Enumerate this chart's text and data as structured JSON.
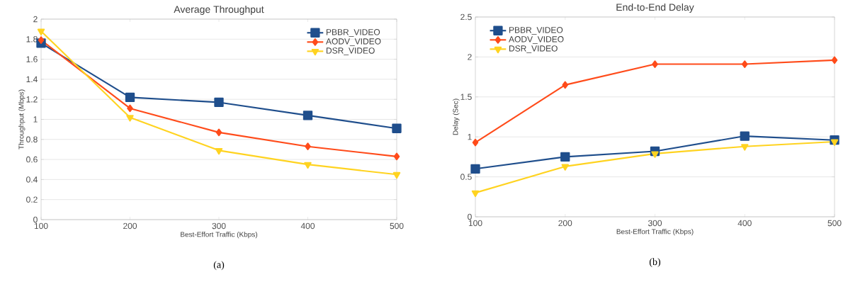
{
  "chart_data": [
    {
      "type": "line",
      "title": "Average Throughput",
      "xlabel": "Best-Effort Traffic (Kbps)",
      "ylabel": "Throughput (Mbps)",
      "x": [
        100,
        200,
        300,
        400,
        500
      ],
      "xlim": [
        100,
        500
      ],
      "xticks": [
        100,
        200,
        300,
        400,
        500
      ],
      "ylim": [
        0,
        2
      ],
      "yticks": [
        0,
        0.2,
        0.4,
        0.6,
        0.8,
        1,
        1.2,
        1.4,
        1.6,
        1.8,
        2
      ],
      "grid": "y",
      "legend": "top right",
      "annotations": [
        "(a)"
      ],
      "series": [
        {
          "name": "PBBR_VIDEO",
          "color": "#1f4e8c",
          "marker": "square",
          "values": [
            1.76,
            1.22,
            1.17,
            1.04,
            0.91
          ]
        },
        {
          "name": "AODV_VIDEO",
          "color": "#ff4b1a",
          "marker": "diamond",
          "values": [
            1.79,
            1.11,
            0.87,
            0.73,
            0.63
          ]
        },
        {
          "name": "DSR_VIDEO",
          "color": "#ffd320",
          "marker": "triangle",
          "values": [
            1.88,
            1.02,
            0.69,
            0.55,
            0.45
          ]
        }
      ]
    },
    {
      "type": "line",
      "title": "End-to-End Delay",
      "xlabel": "Best-Effort Traffic (Kbps)",
      "ylabel": "Delay (Sec)",
      "x": [
        100,
        200,
        300,
        400,
        500
      ],
      "xlim": [
        100,
        500
      ],
      "xticks": [
        100,
        200,
        300,
        400,
        500
      ],
      "ylim": [
        0,
        2.5
      ],
      "yticks": [
        0,
        0.5,
        1,
        1.5,
        2,
        2.5
      ],
      "grid": "y",
      "legend": "top left",
      "annotations": [
        "(b)"
      ],
      "series": [
        {
          "name": "PBBR_VIDEO",
          "color": "#1f4e8c",
          "marker": "square",
          "values": [
            0.6,
            0.75,
            0.82,
            1.01,
            0.96
          ]
        },
        {
          "name": "AODV_VIDEO",
          "color": "#ff4b1a",
          "marker": "diamond",
          "values": [
            0.93,
            1.65,
            1.91,
            1.91,
            1.96
          ]
        },
        {
          "name": "DSR_VIDEO",
          "color": "#ffd320",
          "marker": "triangle",
          "values": [
            0.3,
            0.63,
            0.79,
            0.88,
            0.94
          ]
        }
      ]
    }
  ]
}
